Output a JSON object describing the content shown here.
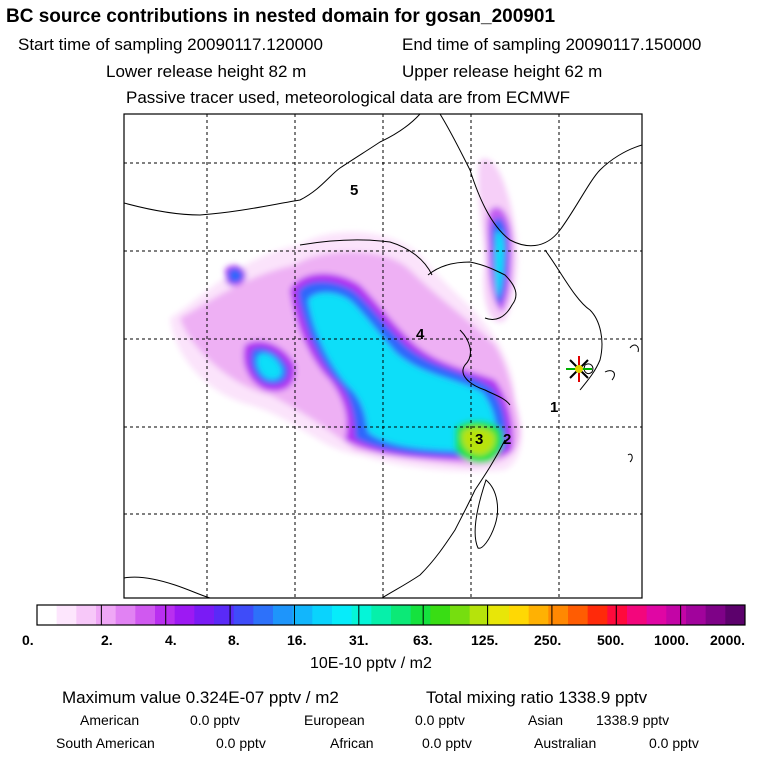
{
  "header": {
    "title": "BC  source contributions in nested domain for gosan_200901",
    "start_label": "Start time of sampling 20090117.120000",
    "end_label": "End time of sampling 20090117.150000",
    "lower_label": "Lower release height   82 m",
    "upper_label": "Upper release height   62 m",
    "tracer_label": "Passive tracer used, meteorological data are from ECMWF"
  },
  "map": {
    "regions": [
      "5",
      "4",
      "1",
      "3",
      "2"
    ],
    "receptor": "gosan"
  },
  "legend": {
    "colors": [
      "#ffffff",
      "#fde6fd",
      "#f7c8f9",
      "#efa7f6",
      "#e182f3",
      "#d059f0",
      "#b92ff0",
      "#9d19f3",
      "#7a1bf5",
      "#5a2af7",
      "#3f4cf9",
      "#2d71fa",
      "#1e95fb",
      "#12b6fc",
      "#0ad3fd",
      "#06ecfa",
      "#05f5d8",
      "#06f0aa",
      "#0ce977",
      "#15e23e",
      "#39dd14",
      "#76de0f",
      "#b6e30b",
      "#e8e608",
      "#ffd804",
      "#ffb103",
      "#ff8802",
      "#ff5c02",
      "#ff2a0a",
      "#ff0a3c",
      "#f3067c",
      "#e006a4",
      "#c305a6",
      "#a1039c",
      "#7e0287",
      "#5c016c"
    ],
    "ticks": [
      "0.",
      "2.",
      "4.",
      "8.",
      "16.",
      "31.",
      "63.",
      "125.",
      "250.",
      "500.",
      "1000.",
      "2000."
    ],
    "units": "10E-10 pptv / m2"
  },
  "footer": {
    "max_label": "Maximum value  0.324E-07 pptv / m2",
    "total_label": "Total mixing ratio     1338.9 pptv",
    "row1": [
      {
        "name": "American",
        "value": "0.0 pptv"
      },
      {
        "name": "European",
        "value": "0.0 pptv"
      },
      {
        "name": "Asian",
        "value": "1338.9 pptv"
      }
    ],
    "row2": [
      {
        "name": "South American",
        "value": "0.0 pptv"
      },
      {
        "name": "African",
        "value": "0.0 pptv"
      },
      {
        "name": "Australian",
        "value": "0.0 pptv"
      }
    ]
  }
}
